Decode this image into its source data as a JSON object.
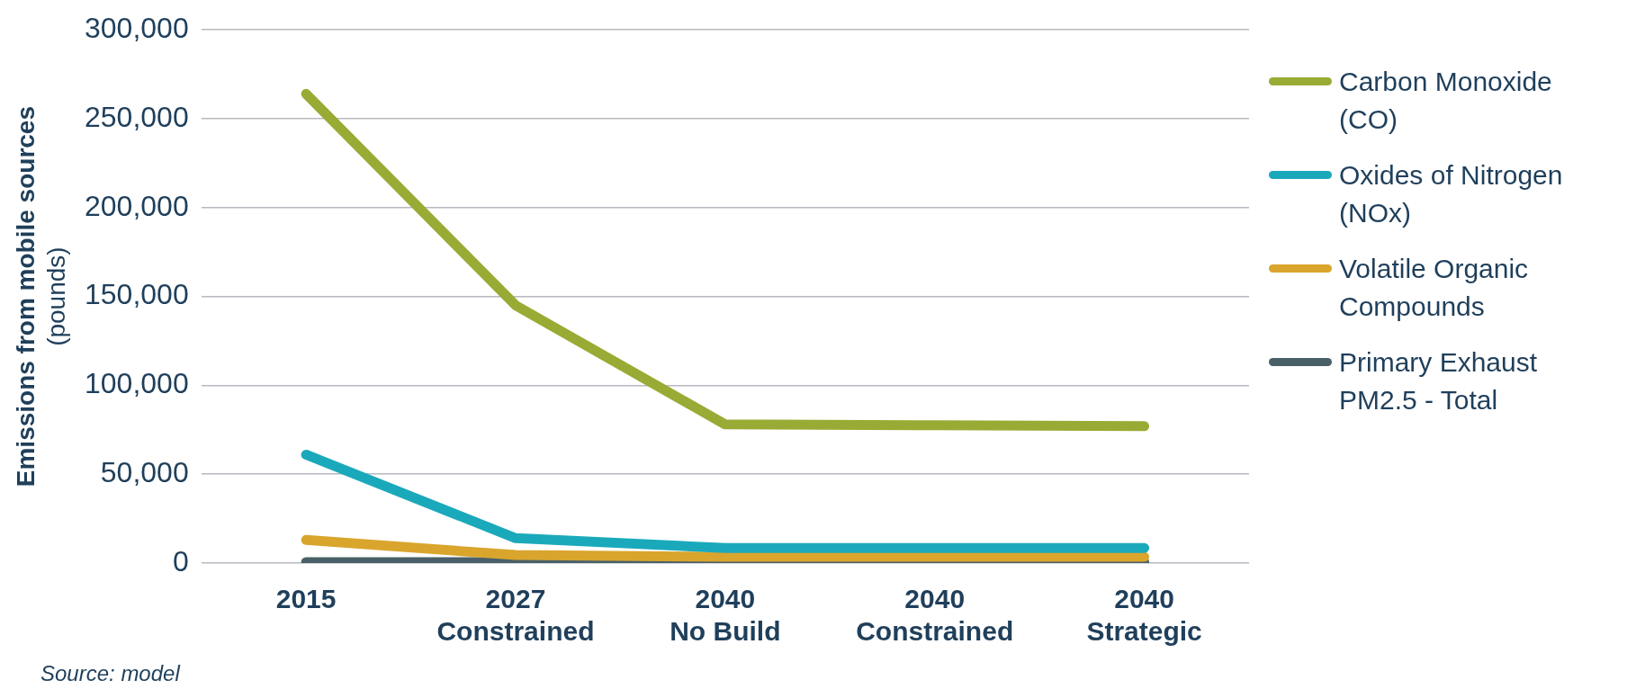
{
  "chart_data": {
    "type": "line",
    "ylabel": "Emissions from mobile sources (pounds)",
    "categories": [
      "2015",
      "2027 Constrained",
      "2040 No Build",
      "2040 Constrained",
      "2040 Strategic"
    ],
    "series": [
      {
        "name": "Carbon Monoxide (CO)",
        "color": "#9aab35",
        "values": [
          264000,
          145000,
          78000,
          77500,
          77000
        ]
      },
      {
        "name": "Oxides of Nitrogen (NOx)",
        "color": "#1aa9bb",
        "values": [
          61000,
          14000,
          8500,
          8500,
          8500
        ]
      },
      {
        "name": "Volatile Organic Compounds",
        "color": "#d9a52d",
        "values": [
          13000,
          4500,
          3500,
          3500,
          3500
        ]
      },
      {
        "name": "Primary Exhaust PM2.5 - Total",
        "color": "#4a6069",
        "values": [
          500,
          500,
          500,
          500,
          500
        ]
      }
    ],
    "ylim": [
      0,
      300000
    ],
    "yticks": [
      0,
      {
        "value": 50000,
        "label": "50,000"
      },
      {
        "value": 100000,
        "label": "100,000"
      },
      {
        "value": 150000,
        "label": "150,000"
      },
      {
        "value": 200000,
        "label": "200,000"
      },
      {
        "value": 250000,
        "label": "250,000"
      },
      {
        "value": 300000,
        "label": "300,000"
      }
    ],
    "grid": "y",
    "legend": "right",
    "marker": "none",
    "line_style": "solid",
    "annotations": [
      "Source: model"
    ]
  }
}
